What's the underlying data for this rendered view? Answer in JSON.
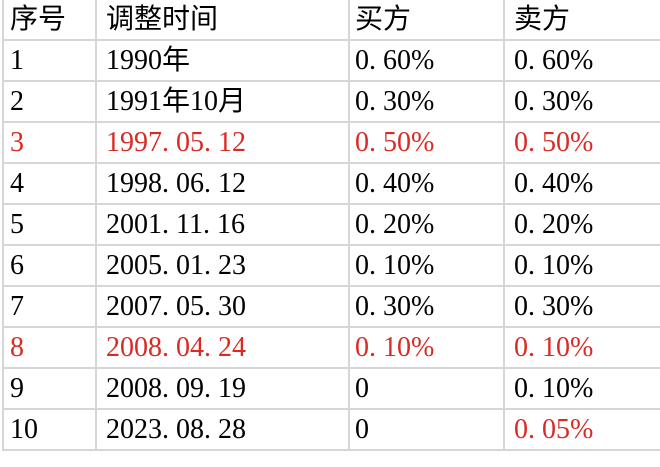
{
  "colors": {
    "text": "#000000",
    "red_text": "#d92b24",
    "grid_line": "#d6d6d6",
    "background": "#ffffff"
  },
  "table": {
    "headers": [
      "序号",
      "调整时间",
      "买方",
      "卖方"
    ],
    "rows": [
      {
        "no": "1",
        "time": "1990年",
        "buyer": "0. 60%",
        "seller": "0. 60%",
        "red": []
      },
      {
        "no": "2",
        "time": "1991年10月",
        "buyer": "0. 30%",
        "seller": "0. 30%",
        "red": []
      },
      {
        "no": "3",
        "time": "1997. 05. 12",
        "buyer": "0. 50%",
        "seller": "0. 50%",
        "red": [
          "no",
          "time",
          "buyer",
          "seller"
        ]
      },
      {
        "no": "4",
        "time": "1998. 06. 12",
        "buyer": "0. 40%",
        "seller": "0. 40%",
        "red": []
      },
      {
        "no": "5",
        "time": "2001. 11. 16",
        "buyer": "0. 20%",
        "seller": "0. 20%",
        "red": []
      },
      {
        "no": "6",
        "time": "2005. 01. 23",
        "buyer": "0. 10%",
        "seller": "0. 10%",
        "red": []
      },
      {
        "no": "7",
        "time": "2007. 05. 30",
        "buyer": "0. 30%",
        "seller": "0. 30%",
        "red": []
      },
      {
        "no": "8",
        "time": "2008. 04. 24",
        "buyer": "0. 10%",
        "seller": "0. 10%",
        "red": [
          "no",
          "time",
          "buyer",
          "seller"
        ]
      },
      {
        "no": "9",
        "time": "2008. 09. 19",
        "buyer": "0",
        "seller": "0. 10%",
        "red": []
      },
      {
        "no": "10",
        "time": "2023. 08. 28",
        "buyer": "0",
        "seller": "0. 05%",
        "red": [
          "seller"
        ]
      }
    ]
  },
  "chart_data": {
    "type": "table",
    "title": "",
    "columns": [
      "序号",
      "调整时间",
      "买方",
      "卖方"
    ],
    "rows": [
      [
        "1",
        "1990年",
        "0.60%",
        "0.60%"
      ],
      [
        "2",
        "1991年10月",
        "0.30%",
        "0.30%"
      ],
      [
        "3",
        "1997.05.12",
        "0.50%",
        "0.50%"
      ],
      [
        "4",
        "1998.06.12",
        "0.40%",
        "0.40%"
      ],
      [
        "5",
        "2001.11.16",
        "0.20%",
        "0.20%"
      ],
      [
        "6",
        "2005.01.23",
        "0.10%",
        "0.10%"
      ],
      [
        "7",
        "2007.05.30",
        "0.30%",
        "0.30%"
      ],
      [
        "8",
        "2008.04.24",
        "0.10%",
        "0.10%"
      ],
      [
        "9",
        "2008.09.19",
        "0",
        "0.10%"
      ],
      [
        "10",
        "2023.08.28",
        "0",
        "0.05%"
      ]
    ],
    "red_highlighted_rows": [
      3,
      8
    ],
    "red_highlighted_cells": [
      {
        "row": 10,
        "column": "卖方",
        "value": "0.05%"
      }
    ],
    "layout_hints": {
      "grid": "on",
      "header_row": true,
      "text_align": "left"
    }
  }
}
